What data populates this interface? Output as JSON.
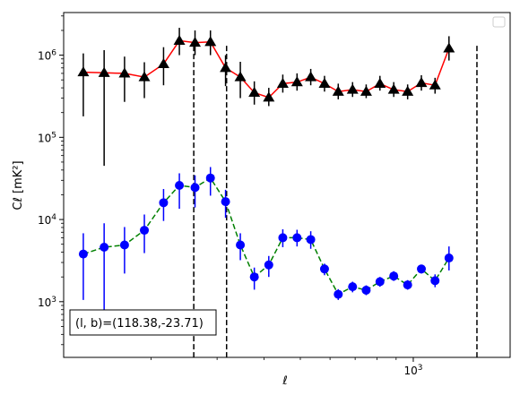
{
  "chart_data": {
    "type": "scatter",
    "title": "",
    "xlabel": "ℓ",
    "ylabel": "Cℓ [mK²]",
    "xscale": "log",
    "yscale": "log",
    "xlim": [
      117,
      1812
    ],
    "ylim": [
      210,
      3300000
    ],
    "x_ticks": [
      {
        "value": 1000,
        "label": "10^3"
      }
    ],
    "y_ticks": [
      {
        "value": 1000,
        "label": "10^3"
      },
      {
        "value": 10000,
        "label": "10^4"
      },
      {
        "value": 100000,
        "label": "10^5"
      },
      {
        "value": 1000000,
        "label": "10^6"
      }
    ],
    "annotation": "(l, b)=(118.38,-23.71)",
    "legend": "top-right (empty)",
    "grid": false,
    "vlines": [
      260,
      318,
      1478
    ],
    "series": [
      {
        "marker": "triangle",
        "color": "#000000",
        "line_color": "#ff0000",
        "line_style": "solid",
        "x": [
          132,
          150,
          170,
          192,
          216,
          238,
          262,
          288,
          316,
          346,
          377,
          412,
          449,
          490,
          533,
          580,
          631,
          689,
          749,
          815,
          887,
          966,
          1051,
          1143,
          1245,
          1355,
          1474,
          1604,
          1745
        ],
        "y": [
          620000,
          610000,
          600000,
          540000,
          780000,
          1500000,
          1420000,
          1450000,
          700000,
          540000,
          350000,
          305000,
          450000,
          470000,
          540000,
          450000,
          360000,
          380000,
          360000,
          450000,
          380000,
          360000,
          460000,
          430000,
          1210000,
          null,
          null,
          null,
          null
        ],
        "x_fix": [
          132,
          150,
          170,
          192,
          216,
          238,
          262,
          288,
          316,
          346,
          377,
          412,
          449,
          490,
          533,
          580,
          631,
          689,
          749,
          815,
          887,
          966,
          1051,
          1143,
          1245
        ],
        "yerr_low": [
          180000,
          45000,
          270000,
          300000,
          430000,
          1000000,
          1000000,
          1000000,
          420000,
          300000,
          250000,
          240000,
          350000,
          370000,
          430000,
          360000,
          290000,
          310000,
          300000,
          370000,
          310000,
          290000,
          370000,
          340000,
          860000
        ],
        "yerr_high": [
          1050000,
          1150000,
          960000,
          820000,
          1250000,
          2150000,
          2000000,
          2000000,
          1000000,
          830000,
          480000,
          400000,
          580000,
          600000,
          680000,
          560000,
          450000,
          470000,
          440000,
          560000,
          470000,
          440000,
          570000,
          530000,
          1700000
        ]
      },
      {
        "marker": "circle",
        "color": "#0000ff",
        "line_color": "#008000",
        "line_style": "dashed",
        "x": [
          132,
          150,
          170,
          192,
          216,
          238,
          262,
          288,
          316,
          346,
          377,
          412,
          449,
          490,
          533,
          580,
          631,
          689,
          749,
          815,
          887,
          966,
          1051,
          1143,
          1245
        ],
        "y": [
          3800,
          4600,
          4900,
          7400,
          16000,
          26000,
          24500,
          32000,
          16500,
          4900,
          2000,
          2800,
          6000,
          6000,
          5700,
          2500,
          1230,
          1520,
          1380,
          1750,
          2050,
          1600,
          2500,
          1800,
          3400
        ],
        "yerr_low": [
          1050,
          600,
          2200,
          3900,
          9600,
          13500,
          14000,
          19500,
          10500,
          3200,
          1400,
          2000,
          4600,
          4700,
          4400,
          2100,
          1050,
          1300,
          1200,
          1520,
          1790,
          1400,
          2200,
          1500,
          2400
        ],
        "yerr_high": [
          6800,
          9000,
          8100,
          11500,
          23500,
          36500,
          34500,
          43500,
          23000,
          6800,
          2600,
          3600,
          7600,
          7500,
          7200,
          2900,
          1420,
          1750,
          1580,
          2000,
          2350,
          1830,
          2800,
          2150,
          4700
        ]
      }
    ]
  }
}
